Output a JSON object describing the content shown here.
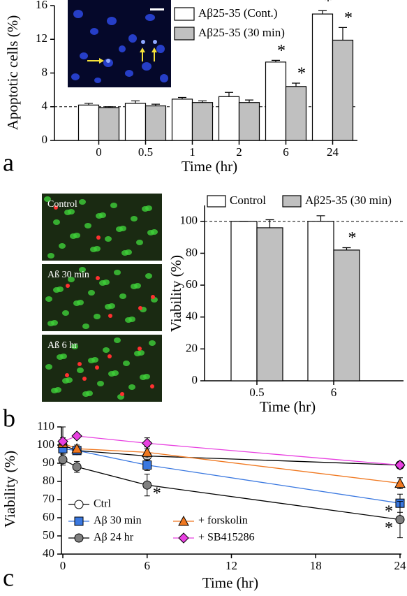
{
  "chart_data": [
    {
      "type": "bar",
      "panel": "a",
      "ylabel": "Apoptotic cells (%)",
      "xlabel": "Time (hr)",
      "categories": [
        "0",
        "0.5",
        "1",
        "2",
        "6",
        "24"
      ],
      "series": [
        {
          "name": "Aβ25-35 (Cont.)",
          "color": "#ffffff",
          "values": [
            4.2,
            4.4,
            4.9,
            5.2,
            9.3,
            15.0
          ],
          "errors": [
            0.2,
            0.3,
            0.2,
            0.5,
            0.2,
            0.4
          ],
          "markers": [
            null,
            null,
            null,
            null,
            "*",
            "*"
          ]
        },
        {
          "name": "Aβ25-35 (30 min)",
          "color": "#c0c0c0",
          "values": [
            3.9,
            4.1,
            4.5,
            4.5,
            6.4,
            11.9
          ],
          "errors": [
            0.1,
            0.2,
            0.2,
            0.3,
            0.4,
            1.5
          ],
          "markers": [
            null,
            null,
            null,
            null,
            "*",
            "*"
          ]
        }
      ],
      "ylim": [
        0,
        16
      ],
      "yticks": [
        0,
        4,
        8,
        12,
        16
      ],
      "ref_line": 4
    },
    {
      "type": "bar",
      "panel": "b",
      "ylabel": "Viability (%)",
      "xlabel": "Time (hr)",
      "images": [
        "Control",
        "Aß 30 min",
        "Aß 6 hr"
      ],
      "categories": [
        "0.5",
        "6"
      ],
      "series": [
        {
          "name": "Control",
          "color": "#ffffff",
          "values": [
            100,
            100
          ],
          "errors": [
            0,
            3.5
          ],
          "markers": [
            null,
            null
          ]
        },
        {
          "name": "Aβ25-35 (30 min)",
          "color": "#c0c0c0",
          "values": [
            96,
            82
          ],
          "errors": [
            5,
            1.5
          ],
          "markers": [
            null,
            "*"
          ]
        }
      ],
      "ylim": [
        0,
        110
      ],
      "yticks": [
        0,
        20,
        40,
        60,
        80,
        100
      ],
      "ref_line": 100
    },
    {
      "type": "line",
      "panel": "c",
      "ylabel": "Viability (%)",
      "xlabel": "Time (hr)",
      "x": [
        0,
        1,
        6,
        24
      ],
      "series": [
        {
          "name": "Ctrl",
          "color": "#ffffff",
          "line_color": "#000000",
          "shape": "circle",
          "values": [
            100,
            97,
            94,
            89
          ],
          "errors": [
            10,
            2,
            2,
            1
          ],
          "markers": [
            null,
            null,
            null,
            null
          ]
        },
        {
          "name": "Aβ 30 min",
          "color": "#3a78e0",
          "line_color": "#3a78e0",
          "shape": "square",
          "values": [
            98,
            97,
            89,
            68
          ],
          "errors": [
            2,
            2,
            3,
            5
          ],
          "markers": [
            null,
            null,
            null,
            "*"
          ]
        },
        {
          "name": "Aβ 24 hr",
          "color": "#808080",
          "line_color": "#000000",
          "shape": "circle",
          "values": [
            92,
            88,
            78,
            59
          ],
          "errors": [
            3,
            3,
            6,
            10
          ],
          "markers": [
            null,
            null,
            "*",
            "*"
          ]
        },
        {
          "name": "+ forskolin",
          "color": "#f07820",
          "line_color": "#f07820",
          "shape": "triangle",
          "values": [
            101,
            98,
            96,
            79
          ],
          "errors": [
            2,
            2,
            3,
            3
          ],
          "markers": [
            null,
            null,
            null,
            null
          ]
        },
        {
          "name": "+ SB415286",
          "color": "#e840e0",
          "line_color": "#e840e0",
          "shape": "diamond",
          "values": [
            102,
            105,
            101,
            89
          ],
          "errors": [
            2,
            1,
            3,
            1
          ],
          "markers": [
            null,
            null,
            null,
            null
          ]
        }
      ],
      "xlim": [
        -0.1,
        24.1
      ],
      "xticks": [
        0,
        6,
        12,
        18,
        24
      ],
      "ylim": [
        40,
        110
      ],
      "yticks": [
        40,
        50,
        60,
        70,
        80,
        90,
        100,
        110
      ]
    }
  ]
}
